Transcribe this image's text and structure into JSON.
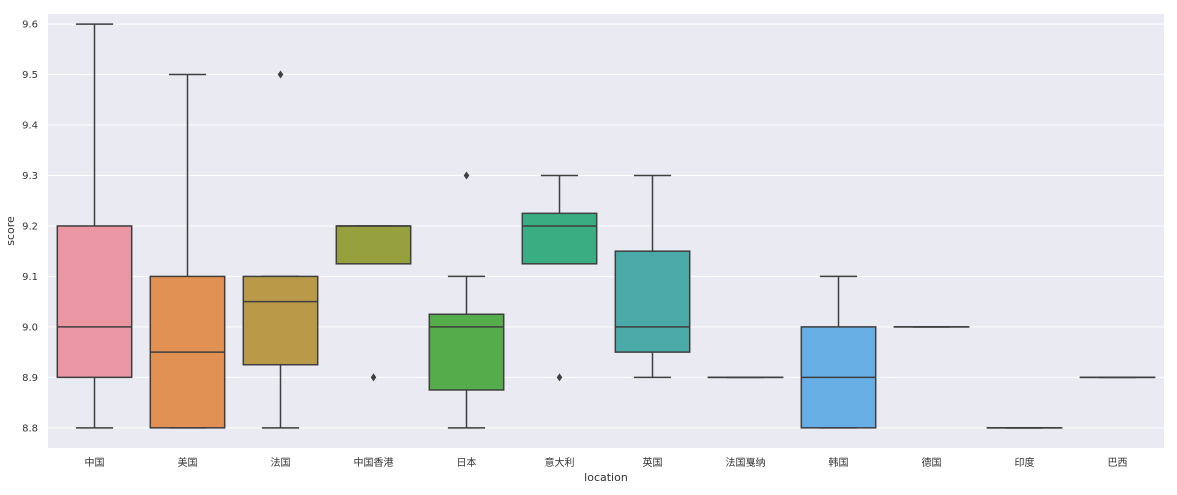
{
  "chart_data": {
    "type": "box",
    "title": "",
    "xlabel": "location",
    "ylabel": "score",
    "ylim": [
      8.76,
      9.62
    ],
    "yticks": [
      8.8,
      8.9,
      9.0,
      9.1,
      9.2,
      9.3,
      9.4,
      9.5,
      9.6
    ],
    "ytick_labels": [
      "8.8",
      "8.9",
      "9.0",
      "9.1",
      "9.2",
      "9.3",
      "9.4",
      "9.5",
      "9.6"
    ],
    "grid": true,
    "categories": [
      "中国",
      "美国",
      "法国",
      "中国香港",
      "日本",
      "意大利",
      "英国",
      "法国戛纳",
      "韩国",
      "德国",
      "印度",
      "巴西"
    ],
    "boxes": [
      {
        "category": "中国",
        "whisker_low": 8.8,
        "q1": 8.9,
        "median": 9.0,
        "q3": 9.2,
        "whisker_high": 9.6,
        "outliers": [],
        "color": "#ea96a3"
      },
      {
        "category": "美国",
        "whisker_low": 8.8,
        "q1": 8.8,
        "median": 8.95,
        "q3": 9.1,
        "whisker_high": 9.5,
        "outliers": [],
        "color": "#e19153"
      },
      {
        "category": "法国",
        "whisker_low": 8.8,
        "q1": 8.925,
        "median": 9.05,
        "q3": 9.1,
        "whisker_high": 9.1,
        "outliers": [
          9.5
        ],
        "color": "#b99a49"
      },
      {
        "category": "中国香港",
        "whisker_low": 9.125,
        "q1": 9.125,
        "median": 9.2,
        "q3": 9.2,
        "whisker_high": 9.2,
        "outliers": [
          8.9
        ],
        "color": "#96a03e"
      },
      {
        "category": "日本",
        "whisker_low": 8.8,
        "q1": 8.875,
        "median": 9.0,
        "q3": 9.025,
        "whisker_high": 9.1,
        "outliers": [
          9.3
        ],
        "color": "#55ac4a"
      },
      {
        "category": "意大利",
        "whisker_low": 9.125,
        "q1": 9.125,
        "median": 9.2,
        "q3": 9.225,
        "whisker_high": 9.3,
        "outliers": [
          8.9
        ],
        "color": "#3bad82"
      },
      {
        "category": "英国",
        "whisker_low": 8.9,
        "q1": 8.95,
        "median": 9.0,
        "q3": 9.15,
        "whisker_high": 9.3,
        "outliers": [],
        "color": "#49aaa8"
      },
      {
        "category": "法国戛纳",
        "whisker_low": 8.9,
        "q1": 8.9,
        "median": 8.9,
        "q3": 8.9,
        "whisker_high": 8.9,
        "outliers": [],
        "color": "#4aa8c0"
      },
      {
        "category": "韩国",
        "whisker_low": 8.8,
        "q1": 8.8,
        "median": 8.9,
        "q3": 9.0,
        "whisker_high": 9.1,
        "outliers": [],
        "color": "#66aee3"
      },
      {
        "category": "德国",
        "whisker_low": 9.0,
        "q1": 9.0,
        "median": 9.0,
        "q3": 9.0,
        "whisker_high": 9.0,
        "outliers": [],
        "color": "#a6a3e8"
      },
      {
        "category": "印度",
        "whisker_low": 8.8,
        "q1": 8.8,
        "median": 8.8,
        "q3": 8.8,
        "whisker_high": 8.8,
        "outliers": [],
        "color": "#d29ae8"
      },
      {
        "category": "巴西",
        "whisker_low": 8.9,
        "q1": 8.9,
        "median": 8.9,
        "q3": 8.9,
        "whisker_high": 8.9,
        "outliers": [],
        "color": "#e795c7"
      }
    ],
    "colors": {
      "plot_background": "#eaeaf2",
      "grid": "#ffffff",
      "line": "#3f3f3f"
    }
  }
}
